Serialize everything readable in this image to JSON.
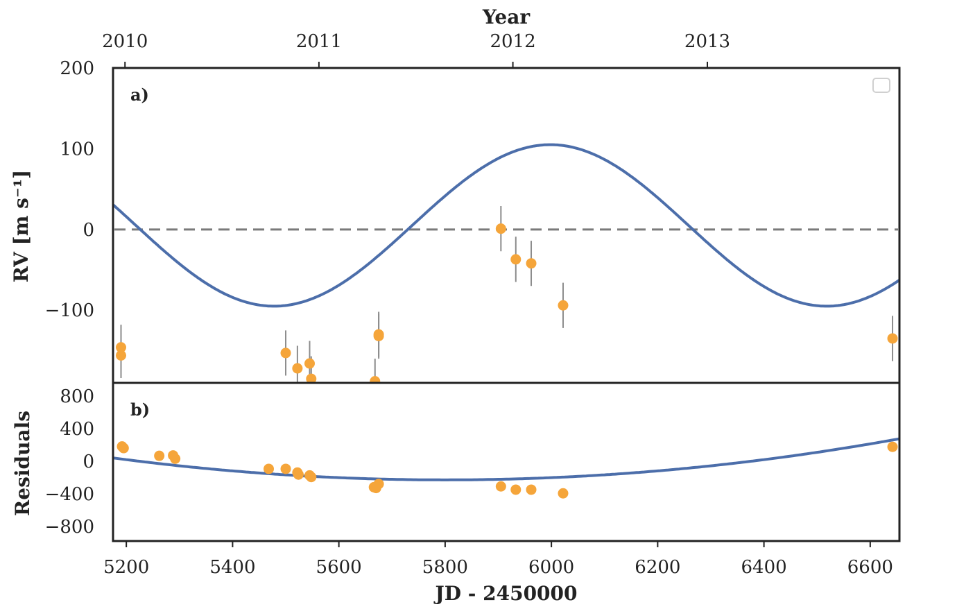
{
  "chart_data": {
    "type": "scatter",
    "top_axis": {
      "label": "Year",
      "ticks": [
        {
          "label": "2010",
          "jd": 5197.5
        },
        {
          "label": "2011",
          "jd": 5562.5
        },
        {
          "label": "2012",
          "jd": 5927.5
        },
        {
          "label": "2013",
          "jd": 6293.5
        }
      ]
    },
    "x": {
      "label": "JD - 2450000",
      "lim": [
        5175,
        6655
      ],
      "ticks": [
        5200,
        5400,
        5600,
        5800,
        6000,
        6200,
        6400,
        6600
      ]
    },
    "panel_a": {
      "tag": "a)",
      "ylabel": "RV [m s⁻¹]",
      "ylim": [
        -190,
        200
      ],
      "yticks": [
        {
          "v": 200,
          "label": "200"
        },
        {
          "v": 100,
          "label": "100"
        },
        {
          "v": 0,
          "label": "0"
        },
        {
          "v": -100,
          "label": "−100"
        }
      ],
      "zero_line": 0,
      "model": {
        "offset": 5,
        "amplitude": 100,
        "period": 1040,
        "peak_jd": 5998
      },
      "points": [
        {
          "x": 5190,
          "y": -146,
          "err": 28
        },
        {
          "x": 5190,
          "y": -156,
          "err": 28
        },
        {
          "x": 5500,
          "y": -153,
          "err": 28
        },
        {
          "x": 5522,
          "y": -172,
          "err": 28
        },
        {
          "x": 5545,
          "y": -166,
          "err": 28
        },
        {
          "x": 5548,
          "y": -185,
          "err": 28
        },
        {
          "x": 5668,
          "y": -188,
          "err": 28
        },
        {
          "x": 5675,
          "y": -132,
          "err": 28
        },
        {
          "x": 5675,
          "y": -130,
          "err": 28
        },
        {
          "x": 5905,
          "y": 1,
          "err": 28
        },
        {
          "x": 5933,
          "y": -37,
          "err": 28
        },
        {
          "x": 5962,
          "y": -42,
          "err": 28
        },
        {
          "x": 6022,
          "y": -94,
          "err": 28
        },
        {
          "x": 6642,
          "y": -135,
          "err": 28
        }
      ]
    },
    "panel_b": {
      "tag": "b)",
      "ylabel": "Residuals",
      "ylim": [
        -980,
        960
      ],
      "yticks": [
        {
          "v": 800,
          "label": "800"
        },
        {
          "v": 400,
          "label": "400"
        },
        {
          "v": 0,
          "label": "0"
        },
        {
          "v": -400,
          "label": "−400"
        },
        {
          "v": -800,
          "label": "−800"
        }
      ],
      "trend": {
        "vertex_jd": 5800,
        "min": -230,
        "coef": 0.00069
      },
      "points": [
        {
          "x": 5192,
          "y": 180
        },
        {
          "x": 5195,
          "y": 160
        },
        {
          "x": 5262,
          "y": 65
        },
        {
          "x": 5288,
          "y": 70
        },
        {
          "x": 5292,
          "y": 30
        },
        {
          "x": 5468,
          "y": -95
        },
        {
          "x": 5500,
          "y": -95
        },
        {
          "x": 5522,
          "y": -140
        },
        {
          "x": 5524,
          "y": -165
        },
        {
          "x": 5545,
          "y": -175
        },
        {
          "x": 5548,
          "y": -195
        },
        {
          "x": 5666,
          "y": -320
        },
        {
          "x": 5670,
          "y": -330
        },
        {
          "x": 5675,
          "y": -280
        },
        {
          "x": 5905,
          "y": -310
        },
        {
          "x": 5933,
          "y": -350
        },
        {
          "x": 5962,
          "y": -350
        },
        {
          "x": 6022,
          "y": -395
        },
        {
          "x": 6642,
          "y": 175
        }
      ]
    },
    "colors": {
      "points": "#f5a53a",
      "model": "#4c6eaa",
      "errorbar": "#8c8c8c",
      "zero_line": "#7a7a7a",
      "frame": "#222222"
    }
  }
}
